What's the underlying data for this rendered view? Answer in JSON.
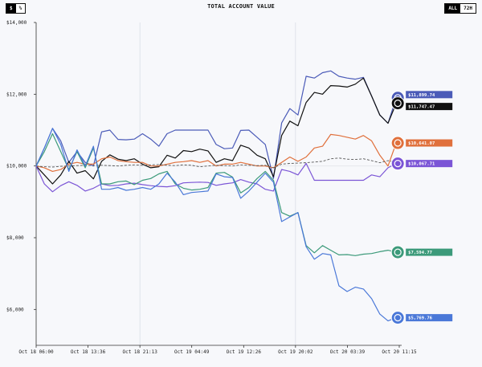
{
  "header": {
    "title": "TOTAL ACCOUNT VALUE",
    "unit_toggle": [
      {
        "label": "$",
        "selected": true
      },
      {
        "label": "%",
        "selected": false
      }
    ],
    "range_toggle": [
      {
        "label": "ALL",
        "selected": true
      },
      {
        "label": "72H",
        "selected": false
      }
    ]
  },
  "chart_data": {
    "type": "line",
    "title": "TOTAL ACCOUNT VALUE",
    "xlabel": "",
    "ylabel": "",
    "ylim": [
      5000,
      14000
    ],
    "xlim": [
      "Oct 18 06:00",
      "Oct 20 11:15"
    ],
    "grid": "vertical lines at selected x ticks",
    "y_ticks": [
      "$14,000",
      "$12,000",
      "$10,000",
      "$8,000",
      "$6,000"
    ],
    "y_tick_values": [
      14000,
      12000,
      10000,
      8000,
      6000
    ],
    "x_ticks": [
      "Oct 18 06:00",
      "Oct 18 13:36",
      "Oct 18 21:13",
      "Oct 19 04:49",
      "Oct 19 12:26",
      "Oct 19 20:02",
      "Oct 20 03:39",
      "Oct 20 11:15"
    ],
    "x": [
      "Oct 18 06:00",
      "Oct 18 07:12",
      "Oct 18 08:24",
      "Oct 18 09:36",
      "Oct 18 10:48",
      "Oct 18 12:00",
      "Oct 18 13:12",
      "Oct 18 14:24",
      "Oct 18 15:36",
      "Oct 18 16:48",
      "Oct 18 18:00",
      "Oct 18 19:12",
      "Oct 18 20:24",
      "Oct 18 21:36",
      "Oct 18 22:48",
      "Oct 19 00:00",
      "Oct 19 01:12",
      "Oct 19 02:24",
      "Oct 19 03:36",
      "Oct 19 04:48",
      "Oct 19 06:00",
      "Oct 19 07:12",
      "Oct 19 08:24",
      "Oct 19 09:36",
      "Oct 19 10:48",
      "Oct 19 12:00",
      "Oct 19 13:12",
      "Oct 19 14:24",
      "Oct 19 15:36",
      "Oct 19 16:48",
      "Oct 19 18:00",
      "Oct 19 19:12",
      "Oct 19 20:24",
      "Oct 19 21:36",
      "Oct 19 22:48",
      "Oct 20 00:00",
      "Oct 20 01:12",
      "Oct 20 02:24",
      "Oct 20 03:36",
      "Oct 20 04:48",
      "Oct 20 06:00",
      "Oct 20 07:12",
      "Oct 20 08:24",
      "Oct 20 09:36",
      "Oct 20 10:48"
    ],
    "series": [
      {
        "color": "#4b5bb8",
        "dashed": false,
        "icon": "whale-icon",
        "end_label": "$11,899.74",
        "values": [
          10000,
          10500,
          11050,
          10700,
          10100,
          10400,
          10100,
          10000,
          10950,
          11000,
          10740,
          10730,
          10750,
          10900,
          10750,
          10550,
          10900,
          11000,
          11000,
          11000,
          11000,
          11000,
          10600,
          10480,
          10500,
          10990,
          11000,
          10800,
          10600,
          9650,
          11200,
          11600,
          11420,
          12500,
          12450,
          12600,
          12650,
          12500,
          12450,
          12420,
          12470,
          11950,
          11420,
          11190,
          11899.74
        ]
      },
      {
        "color": "#111111",
        "dashed": false,
        "icon": "tentacle-icon",
        "end_label": "$11,747.47",
        "values": [
          10000,
          9750,
          9500,
          9750,
          10130,
          9800,
          9870,
          9640,
          10130,
          10310,
          10190,
          10150,
          10200,
          10050,
          9950,
          9980,
          10300,
          10220,
          10430,
          10400,
          10470,
          10420,
          10100,
          10200,
          10150,
          10580,
          10500,
          10300,
          10200,
          9700,
          10850,
          11250,
          11120,
          11770,
          12050,
          12000,
          12240,
          12230,
          12200,
          12280,
          12450,
          11950,
          11420,
          11190,
          11747.47
        ]
      },
      {
        "color": "#e0703c",
        "dashed": false,
        "icon": "starburst-icon",
        "end_label": "$10,641.07",
        "values": [
          10000,
          9950,
          9850,
          9900,
          10050,
          10100,
          10050,
          10050,
          10200,
          10250,
          10150,
          10120,
          10100,
          10100,
          10000,
          10000,
          10050,
          10100,
          10120,
          10150,
          10100,
          10150,
          10000,
          10050,
          10050,
          10100,
          10050,
          10000,
          10000,
          9950,
          10100,
          10250,
          10130,
          10250,
          10500,
          10550,
          10880,
          10850,
          10800,
          10750,
          10850,
          10700,
          10300,
          10000,
          10641.07
        ]
      },
      {
        "color": "#555555",
        "dashed": true,
        "icon": "",
        "end_label": "",
        "values": [
          10000,
          9980,
          9970,
          9990,
          10000,
          10010,
          10020,
          10010,
          10020,
          10010,
          10000,
          10020,
          10030,
          10020,
          10030,
          10040,
          10020,
          10010,
          10030,
          10020,
          9980,
          10000,
          10020,
          10010,
          10000,
          10030,
          10020,
          10010,
          10020,
          9950,
          10050,
          10070,
          10080,
          10090,
          10110,
          10130,
          10200,
          10220,
          10190,
          10180,
          10200,
          10150,
          10090,
          10150,
          10100
        ]
      },
      {
        "color": "#7b55d6",
        "dashed": false,
        "icon": "knot-icon",
        "end_label": "$10,067.71",
        "values": [
          10000,
          9500,
          9280,
          9450,
          9560,
          9460,
          9300,
          9380,
          9500,
          9450,
          9460,
          9500,
          9520,
          9480,
          9450,
          9430,
          9420,
          9450,
          9530,
          9540,
          9550,
          9540,
          9460,
          9500,
          9530,
          9620,
          9550,
          9500,
          9350,
          9300,
          9900,
          9850,
          9750,
          10070,
          9600,
          9600,
          9600,
          9600,
          9600,
          9600,
          9600,
          9750,
          9700,
          9950,
          10067.71
        ]
      },
      {
        "color": "#3c9a7a",
        "dashed": false,
        "icon": "openai-icon",
        "end_label": "$7,594.77",
        "values": [
          10000,
          10400,
          10900,
          10400,
          9900,
          10400,
          9950,
          10500,
          9500,
          9500,
          9560,
          9580,
          9480,
          9600,
          9650,
          9780,
          9850,
          9500,
          9380,
          9330,
          9350,
          9400,
          9800,
          9820,
          9690,
          9250,
          9400,
          9650,
          9850,
          9600,
          8700,
          8600,
          8700,
          7780,
          7580,
          7780,
          7650,
          7520,
          7530,
          7500,
          7540,
          7560,
          7610,
          7650,
          7594.77
        ]
      },
      {
        "color": "#4a78d8",
        "dashed": false,
        "icon": "sparkle-icon",
        "end_label": "$5,769.76",
        "values": [
          10000,
          10500,
          11050,
          10600,
          9850,
          10450,
          10000,
          10550,
          9350,
          9350,
          9400,
          9320,
          9350,
          9400,
          9350,
          9500,
          9800,
          9550,
          9200,
          9260,
          9280,
          9300,
          9780,
          9700,
          9680,
          9100,
          9300,
          9550,
          9800,
          9550,
          8450,
          8580,
          8700,
          7750,
          7400,
          7560,
          7520,
          6660,
          6500,
          6620,
          6570,
          6300,
          5870,
          5680,
          5769.76
        ]
      }
    ]
  }
}
